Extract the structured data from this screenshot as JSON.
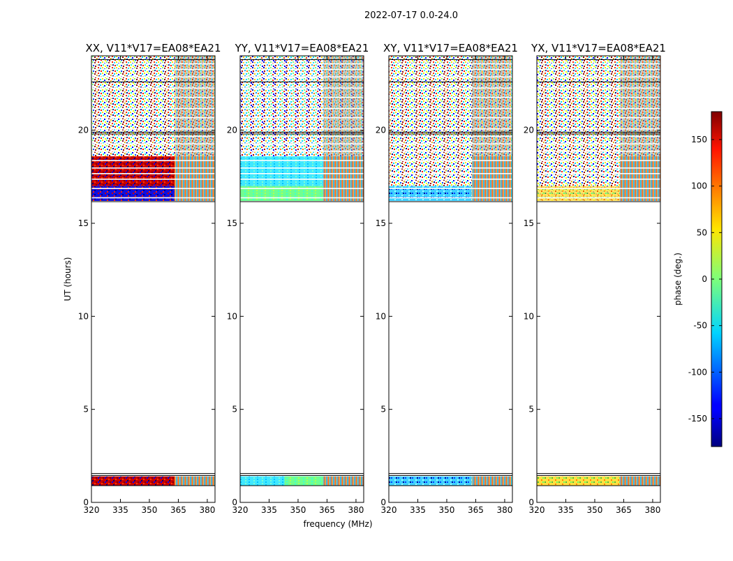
{
  "chart_data": {
    "type": "heatmap",
    "title": "2022-07-17 0.0-24.0",
    "xlabel": "frequency (MHz)",
    "ylabel": "UT (hours)",
    "xlim": [
      320,
      384
    ],
    "ylim": [
      0,
      24
    ],
    "x_ticks": [
      320,
      335,
      350,
      365,
      380
    ],
    "y_ticks": [
      0,
      5,
      10,
      15,
      20
    ],
    "panels": [
      {
        "id": "xx",
        "title": "XX, V11*V17=EA08*EA21",
        "y_tick_labels": true
      },
      {
        "id": "yy",
        "title": "YY, V11*V17=EA08*EA21",
        "y_tick_labels": true
      },
      {
        "id": "xy",
        "title": "XY, V11*V17=EA08*EA21",
        "y_tick_labels": true
      },
      {
        "id": "yx",
        "title": "YX, V11*V17=EA08*EA21",
        "y_tick_labels": true
      }
    ],
    "data_blocks_ut": [
      {
        "start": 0.9,
        "end": 1.4
      },
      {
        "start": 16.2,
        "end": 24.0
      }
    ],
    "colorbar": {
      "label": "phase (deg.)",
      "range": [
        -180,
        180
      ],
      "ticks": [
        -150,
        -100,
        -50,
        0,
        50,
        100,
        150
      ],
      "colormap": "jet"
    }
  }
}
